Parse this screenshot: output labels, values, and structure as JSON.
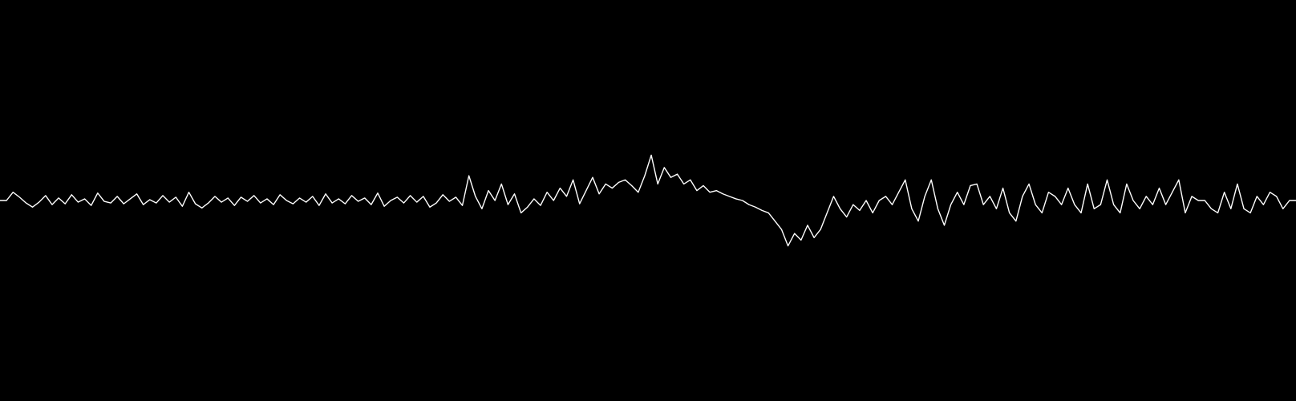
{
  "chart_data": {
    "type": "line",
    "color": "#ffffff",
    "ylim": [
      -243,
      243
    ],
    "values": [
      0,
      0,
      10,
      4,
      -3,
      -8,
      -2,
      6,
      -5,
      3,
      -4,
      7,
      -2,
      2,
      -6,
      9,
      -1,
      -3,
      5,
      -4,
      2,
      8,
      -5,
      1,
      -3,
      6,
      -2,
      4,
      -7,
      10,
      -4,
      -9,
      -3,
      5,
      -2,
      3,
      -6,
      4,
      -1,
      6,
      -3,
      2,
      -5,
      7,
      0,
      -4,
      3,
      -2,
      5,
      -6,
      8,
      -3,
      2,
      -4,
      6,
      -1,
      3,
      -5,
      9,
      -7,
      0,
      4,
      -3,
      6,
      -2,
      5,
      -8,
      -3,
      7,
      -1,
      4,
      -6,
      30,
      5,
      -10,
      12,
      0,
      20,
      -5,
      8,
      -15,
      -8,
      2,
      -6,
      10,
      0,
      15,
      5,
      25,
      -4,
      12,
      28,
      8,
      20,
      15,
      22,
      25,
      18,
      10,
      30,
      55,
      20,
      40,
      28,
      32,
      20,
      25,
      12,
      18,
      10,
      12,
      8,
      5,
      2,
      0,
      -5,
      -8,
      -12,
      -15,
      -25,
      -35,
      -55,
      -40,
      -48,
      -30,
      -45,
      -35,
      -15,
      5,
      -10,
      -20,
      -5,
      -12,
      0,
      -15,
      0,
      5,
      -5,
      10,
      25,
      -10,
      -25,
      5,
      25,
      -10,
      -30,
      -5,
      10,
      -5,
      18,
      20,
      -5,
      5,
      -10,
      15,
      -15,
      -25,
      5,
      20,
      -5,
      -15,
      10,
      5,
      -5,
      15,
      -5,
      -15,
      20,
      -10,
      -5,
      25,
      -5,
      -15,
      20,
      0,
      -10,
      5,
      -5,
      15,
      -5,
      10,
      25,
      -15,
      5,
      0,
      0,
      -10,
      -15,
      10,
      -10,
      20,
      -10,
      -15,
      5,
      -5,
      10,
      5,
      -10,
      0,
      0
    ]
  }
}
